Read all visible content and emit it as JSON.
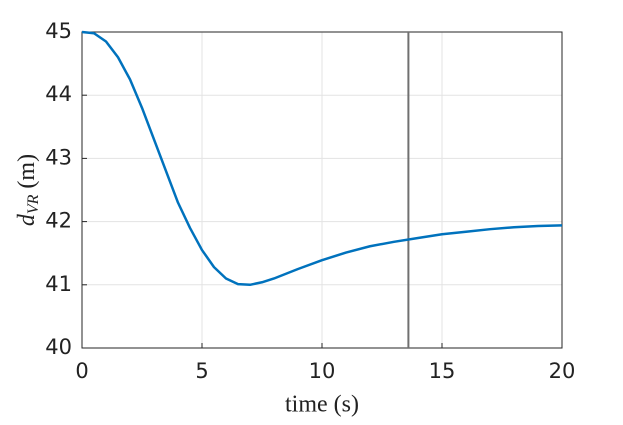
{
  "chart_data": {
    "type": "line",
    "xlabel": "time (s)",
    "ylabel": {
      "symbol": "d",
      "subscript": "VR",
      "unit": "(m)"
    },
    "x": [
      0,
      0.5,
      1,
      1.5,
      2,
      2.5,
      3,
      3.5,
      4,
      4.5,
      5,
      5.5,
      6,
      6.5,
      7,
      7.5,
      8,
      9,
      10,
      11,
      12,
      13,
      14,
      15,
      16,
      17,
      18,
      19,
      20
    ],
    "series": [
      {
        "color": "#0072bd",
        "values": [
          45,
          44.98,
          44.85,
          44.6,
          44.25,
          43.8,
          43.3,
          42.8,
          42.3,
          41.9,
          41.55,
          41.28,
          41.1,
          41.01,
          41.0,
          41.04,
          41.1,
          41.25,
          41.39,
          41.51,
          41.61,
          41.68,
          41.74,
          41.8,
          41.84,
          41.88,
          41.91,
          41.93,
          41.94
        ]
      }
    ],
    "vline": {
      "x": 13.6,
      "color": "#707070"
    },
    "xlim": [
      0,
      20
    ],
    "xticks": [
      0,
      5,
      10,
      15,
      20
    ],
    "ylim": [
      40,
      45
    ],
    "yticks": [
      40,
      41,
      42,
      43,
      44,
      45
    ],
    "grid": true
  }
}
